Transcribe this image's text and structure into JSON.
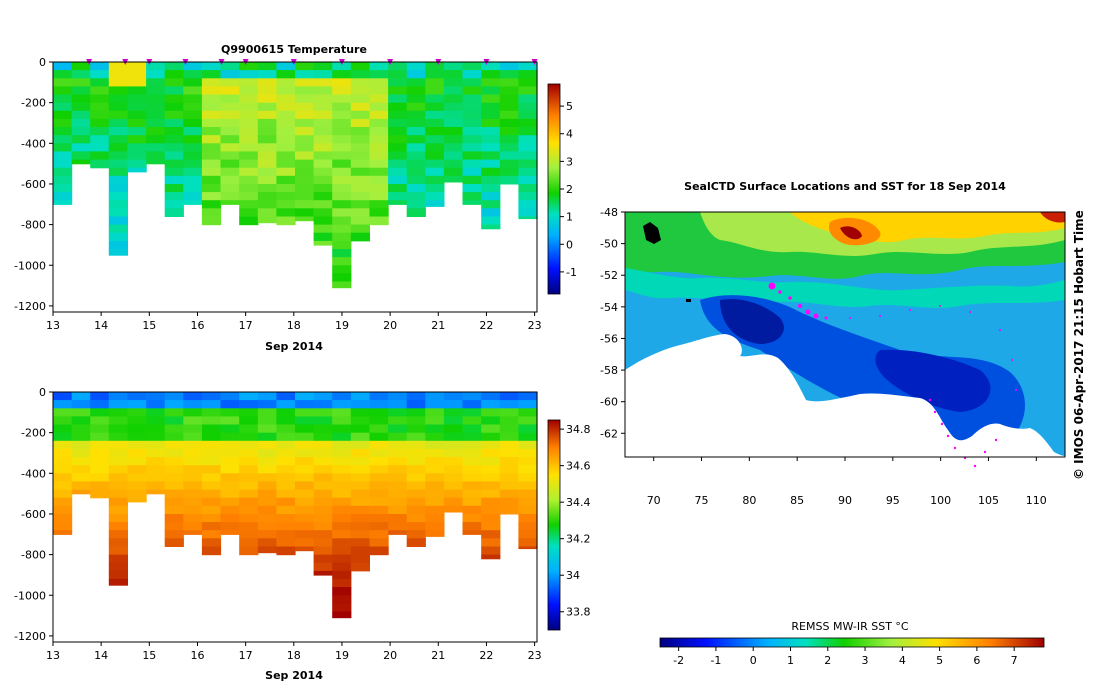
{
  "chart_data": [
    {
      "type": "heatmap",
      "title": "Q9900615  Temperature",
      "xlabel": "Sep 2014",
      "x_ticks": [
        "13",
        "14",
        "15",
        "16",
        "17",
        "18",
        "19",
        "20",
        "21",
        "22",
        "23"
      ],
      "y_ticks": [
        "0",
        "-200",
        "-400",
        "-600",
        "-800",
        "-1000",
        "-1200"
      ],
      "ylim": [
        -1230,
        0
      ],
      "xlim": [
        13,
        23.05
      ],
      "colorbar": {
        "ticks": [
          "5",
          "4",
          "3",
          "2",
          "1",
          "0",
          "-1"
        ],
        "range": [
          -1.8,
          5.8
        ]
      },
      "profile_depths_m": [
        700,
        500,
        520,
        950,
        540,
        500,
        760,
        700,
        800,
        700,
        800,
        790,
        800,
        780,
        900,
        1110,
        880,
        800,
        700,
        760,
        710,
        590,
        700,
        820,
        600,
        770
      ],
      "surface_markers": [
        "13.75",
        "14.5",
        "15.0",
        "15.75",
        "16.5",
        "17.0",
        "18.0",
        "19.0",
        "20.0",
        "21.0",
        "22.0",
        "23.0"
      ]
    },
    {
      "type": "heatmap",
      "title": "",
      "xlabel": "Sep 2014",
      "x_ticks": [
        "13",
        "14",
        "15",
        "16",
        "17",
        "18",
        "19",
        "20",
        "21",
        "22",
        "23"
      ],
      "y_ticks": [
        "0",
        "-200",
        "-400",
        "-600",
        "-800",
        "-1000",
        "-1200"
      ],
      "ylim": [
        -1230,
        0
      ],
      "xlim": [
        13,
        23.05
      ],
      "colorbar": {
        "ticks": [
          "34.8",
          "34.6",
          "34.4",
          "34.2",
          "34",
          "33.8"
        ],
        "range": [
          33.7,
          34.85
        ]
      },
      "profile_depths_m": [
        700,
        500,
        520,
        950,
        540,
        500,
        760,
        700,
        800,
        700,
        800,
        790,
        800,
        780,
        900,
        1110,
        880,
        800,
        700,
        760,
        710,
        590,
        700,
        820,
        600,
        770
      ]
    },
    {
      "type": "heatmap",
      "title": "SealCTD Surface Locations and SST for 18 Sep 2014",
      "x_ticks": [
        "70",
        "75",
        "80",
        "85",
        "90",
        "95",
        "100",
        "105",
        "110"
      ],
      "y_ticks": [
        "-48",
        "-50",
        "-52",
        "-54",
        "-56",
        "-58",
        "-60",
        "-62"
      ],
      "xlim": [
        67,
        113
      ],
      "ylim": [
        -63.5,
        -48
      ],
      "colorbar": {
        "label": "REMSS MW-IR SST °C",
        "ticks": [
          "-2",
          "-1",
          "0",
          "1",
          "2",
          "3",
          "4",
          "5",
          "6",
          "7"
        ],
        "range": [
          -2.5,
          7.8
        ]
      },
      "track_color": "#ff00ff",
      "credit": "© IMOS 06-Apr-2017 21:15 Hobart Time"
    }
  ]
}
